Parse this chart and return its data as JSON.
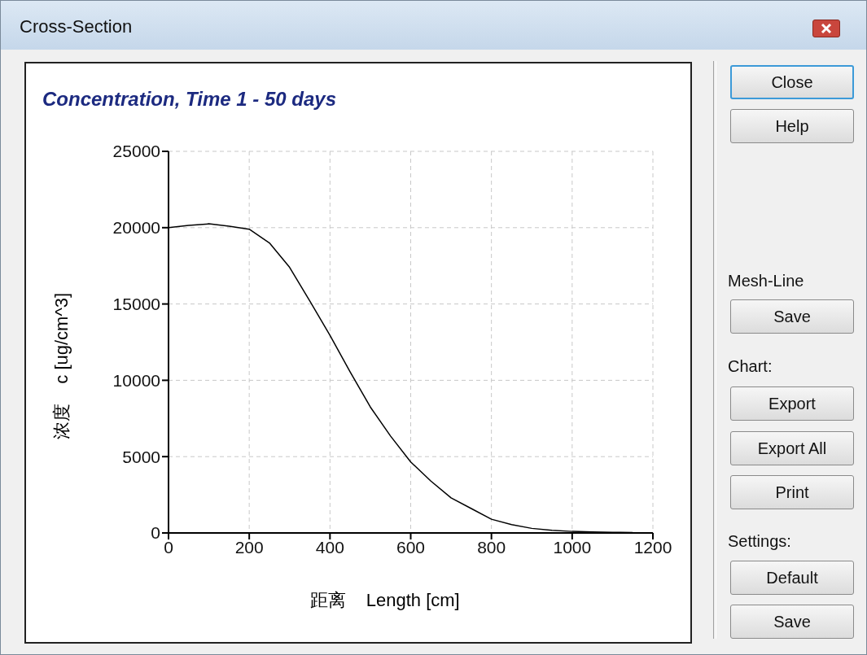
{
  "chart_data": {
    "type": "line",
    "title": "Concentration, Time 1 - 50 days",
    "xlabel": "距离    Length [cm]",
    "ylabel": "浓度    c [ug/cm^3]",
    "annotations": [
      "Cross-Section",
      "Close",
      "Help",
      "Mesh-Line",
      "Save",
      "Chart:",
      "Export",
      "Export All",
      "Print",
      "Settings:",
      "Default",
      "Save"
    ],
    "x": [
      0,
      50,
      100,
      150,
      200,
      250,
      300,
      350,
      400,
      450,
      500,
      550,
      600,
      650,
      700,
      750,
      800,
      850,
      900,
      950,
      1000,
      1050,
      1100,
      1150
    ],
    "series": [
      {
        "color": "#000000",
        "values": [
          20000,
          20150,
          20250,
          20100,
          19900,
          19000,
          17400,
          15200,
          12950,
          10550,
          8250,
          6350,
          4650,
          3400,
          2300,
          1600,
          900,
          550,
          300,
          170,
          100,
          60,
          40,
          30
        ]
      }
    ],
    "xlim": [
      0,
      1200
    ],
    "xticks": [
      0,
      200,
      400,
      600,
      800,
      1000,
      1200
    ],
    "ylim": [
      0,
      25000
    ],
    "yticks": [
      0,
      5000,
      10000,
      15000,
      20000,
      25000
    ],
    "grid": true,
    "legend": false,
    "marker": "none",
    "line_style": "solid"
  }
}
